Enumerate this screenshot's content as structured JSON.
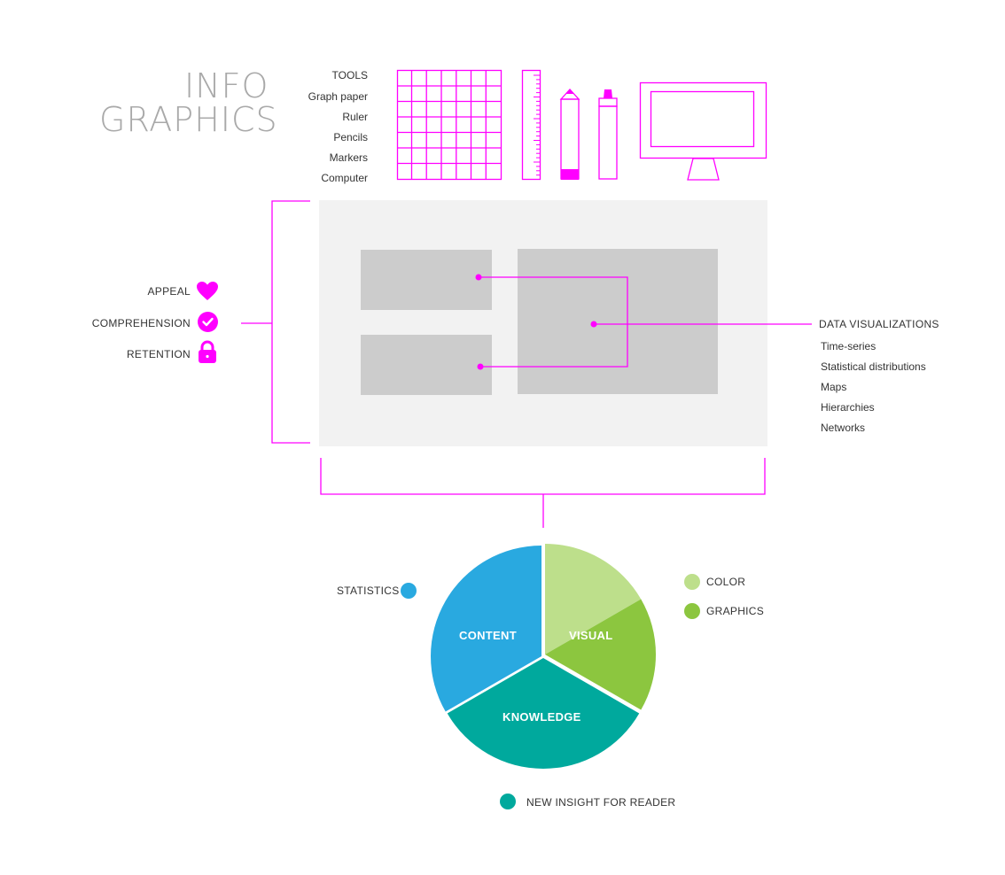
{
  "title": {
    "line1": "INFO",
    "line2": "GRAPHICS"
  },
  "tools": {
    "heading": "TOOLS",
    "items": [
      "Graph paper",
      "Ruler",
      "Pencils",
      "Markers",
      "Computer"
    ]
  },
  "goals": [
    {
      "label": "APPEAL",
      "icon": "heart-icon"
    },
    {
      "label": "COMPREHENSION",
      "icon": "check-circle-icon"
    },
    {
      "label": "RETENTION",
      "icon": "lock-icon"
    }
  ],
  "data_visualizations": {
    "heading": "DATA VISUALIZATIONS",
    "items": [
      "Time-series",
      "Statistical distributions",
      "Maps",
      "Hierarchies",
      "Networks"
    ]
  },
  "pie": {
    "segments": [
      {
        "label": "CONTENT",
        "color": "#29a9e0",
        "percent": 33.3
      },
      {
        "label": "VISUAL",
        "color": "#8cc63f",
        "percent": 33.3
      },
      {
        "label": "KNOWLEDGE",
        "color": "#00a99d",
        "percent": 33.3
      }
    ],
    "visual_light_color": "#bddf8b"
  },
  "legend": {
    "statistics": "STATISTICS",
    "color": "COLOR",
    "graphics": "GRAPHICS",
    "insight": "NEW INSIGHT FOR READER"
  },
  "colors": {
    "magenta": "#ff00ff",
    "panel": "#f2f2f2",
    "block": "#cccccc",
    "title_gray": "#a9a9a9",
    "statistics": "#29a9e0",
    "color_light_green": "#bddf8b",
    "graphics_green": "#8cc63f",
    "knowledge_teal": "#00a99d"
  }
}
